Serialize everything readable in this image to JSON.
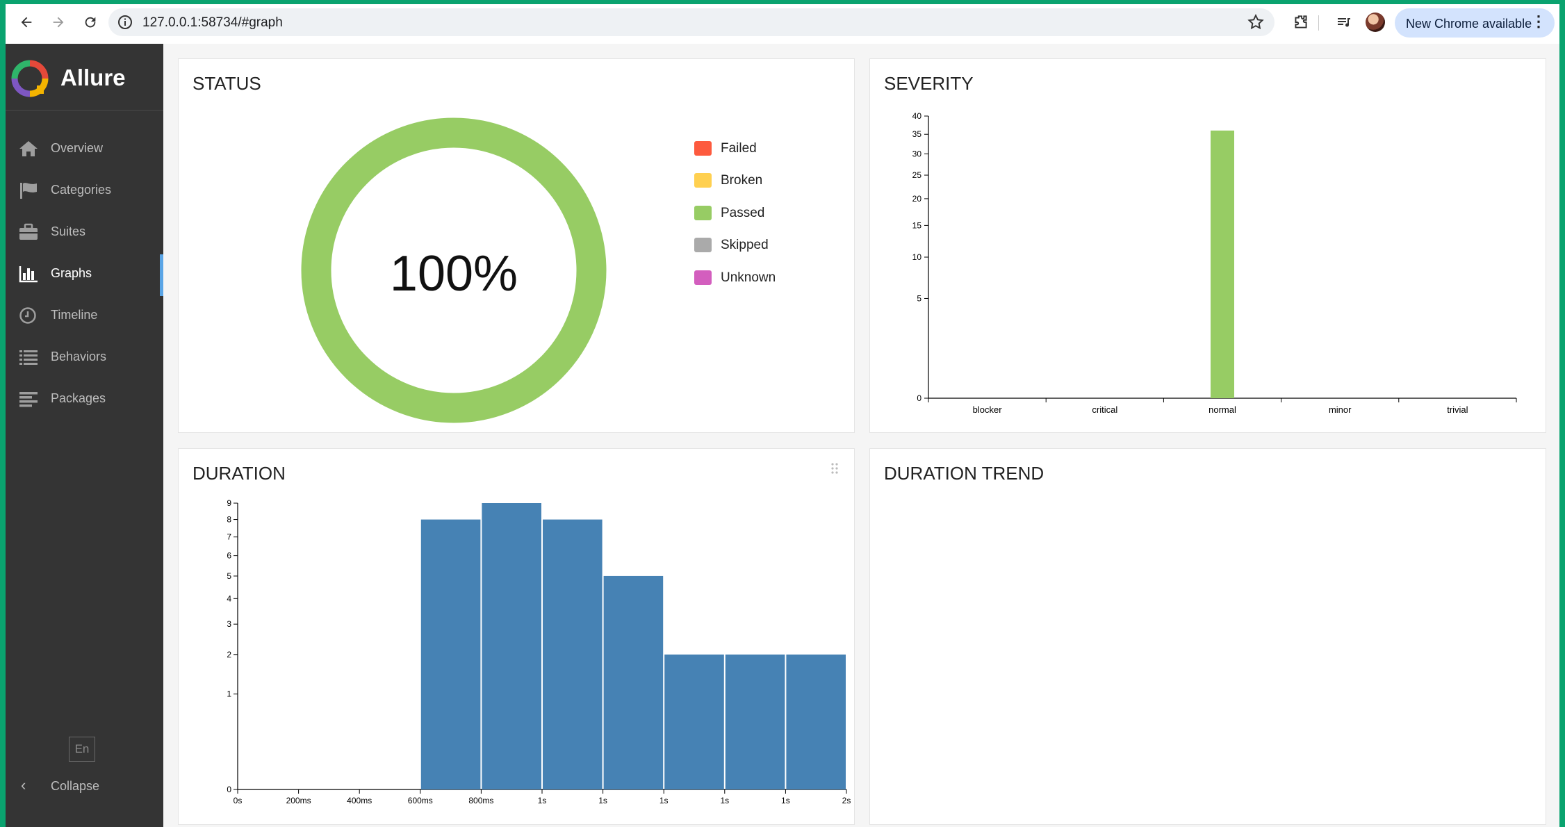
{
  "browser": {
    "url": "127.0.0.1:58734/#graph",
    "update_label": "New Chrome available"
  },
  "sidebar": {
    "brand": "Allure",
    "items": [
      {
        "label": "Overview",
        "icon": "home-icon"
      },
      {
        "label": "Categories",
        "icon": "flag-icon"
      },
      {
        "label": "Suites",
        "icon": "briefcase-icon"
      },
      {
        "label": "Graphs",
        "icon": "bar-chart-icon",
        "active": true
      },
      {
        "label": "Timeline",
        "icon": "clock-icon"
      },
      {
        "label": "Behaviors",
        "icon": "list-icon"
      },
      {
        "label": "Packages",
        "icon": "align-left-icon"
      }
    ],
    "lang": "En",
    "collapse_label": "Collapse"
  },
  "panels": {
    "status": {
      "title": "STATUS",
      "percent_label": "100%",
      "legend": [
        {
          "label": "Failed",
          "color": "#fd5a3e"
        },
        {
          "label": "Broken",
          "color": "#ffd050"
        },
        {
          "label": "Passed",
          "color": "#97cc64"
        },
        {
          "label": "Skipped",
          "color": "#aaaaaa"
        },
        {
          "label": "Unknown",
          "color": "#d35ebe"
        }
      ]
    },
    "severity": {
      "title": "SEVERITY"
    },
    "duration": {
      "title": "DURATION"
    },
    "duration_trend": {
      "title": "DURATION TREND"
    }
  },
  "chart_data": [
    {
      "type": "pie",
      "title": "STATUS",
      "categories": [
        "Failed",
        "Broken",
        "Passed",
        "Skipped",
        "Unknown"
      ],
      "values": [
        0,
        0,
        36,
        0,
        0
      ],
      "center_label": "100%",
      "legend_position": "right"
    },
    {
      "type": "bar",
      "title": "SEVERITY",
      "categories": [
        "blocker",
        "critical",
        "normal",
        "minor",
        "trivial"
      ],
      "values": [
        0,
        0,
        36,
        0,
        0
      ],
      "y_ticks": [
        0,
        5,
        10,
        15,
        20,
        25,
        30,
        35,
        40
      ],
      "y_scale": "sqrt",
      "ylim": [
        0,
        40
      ],
      "color": "#97cc64"
    },
    {
      "type": "bar",
      "title": "DURATION",
      "x_ticks": [
        "0s",
        "200ms",
        "400ms",
        "600ms",
        "800ms",
        "1s",
        "1s",
        "1s",
        "1s",
        "1s",
        "2s"
      ],
      "bins": [
        {
          "start_ms": 600,
          "end_ms": 800,
          "count": 8
        },
        {
          "start_ms": 800,
          "end_ms": 1000,
          "count": 9
        },
        {
          "start_ms": 1000,
          "end_ms": 1200,
          "count": 8
        },
        {
          "start_ms": 1200,
          "end_ms": 1400,
          "count": 5
        },
        {
          "start_ms": 1400,
          "end_ms": 1600,
          "count": 2
        },
        {
          "start_ms": 1600,
          "end_ms": 1800,
          "count": 2
        },
        {
          "start_ms": 1800,
          "end_ms": 2000,
          "count": 2
        }
      ],
      "y_ticks": [
        0,
        1,
        2,
        3,
        4,
        5,
        6,
        7,
        8,
        9
      ],
      "y_scale": "sqrt",
      "ylim": [
        0,
        9
      ],
      "xlim_ms": [
        0,
        2000
      ],
      "color": "#4682b4"
    }
  ]
}
